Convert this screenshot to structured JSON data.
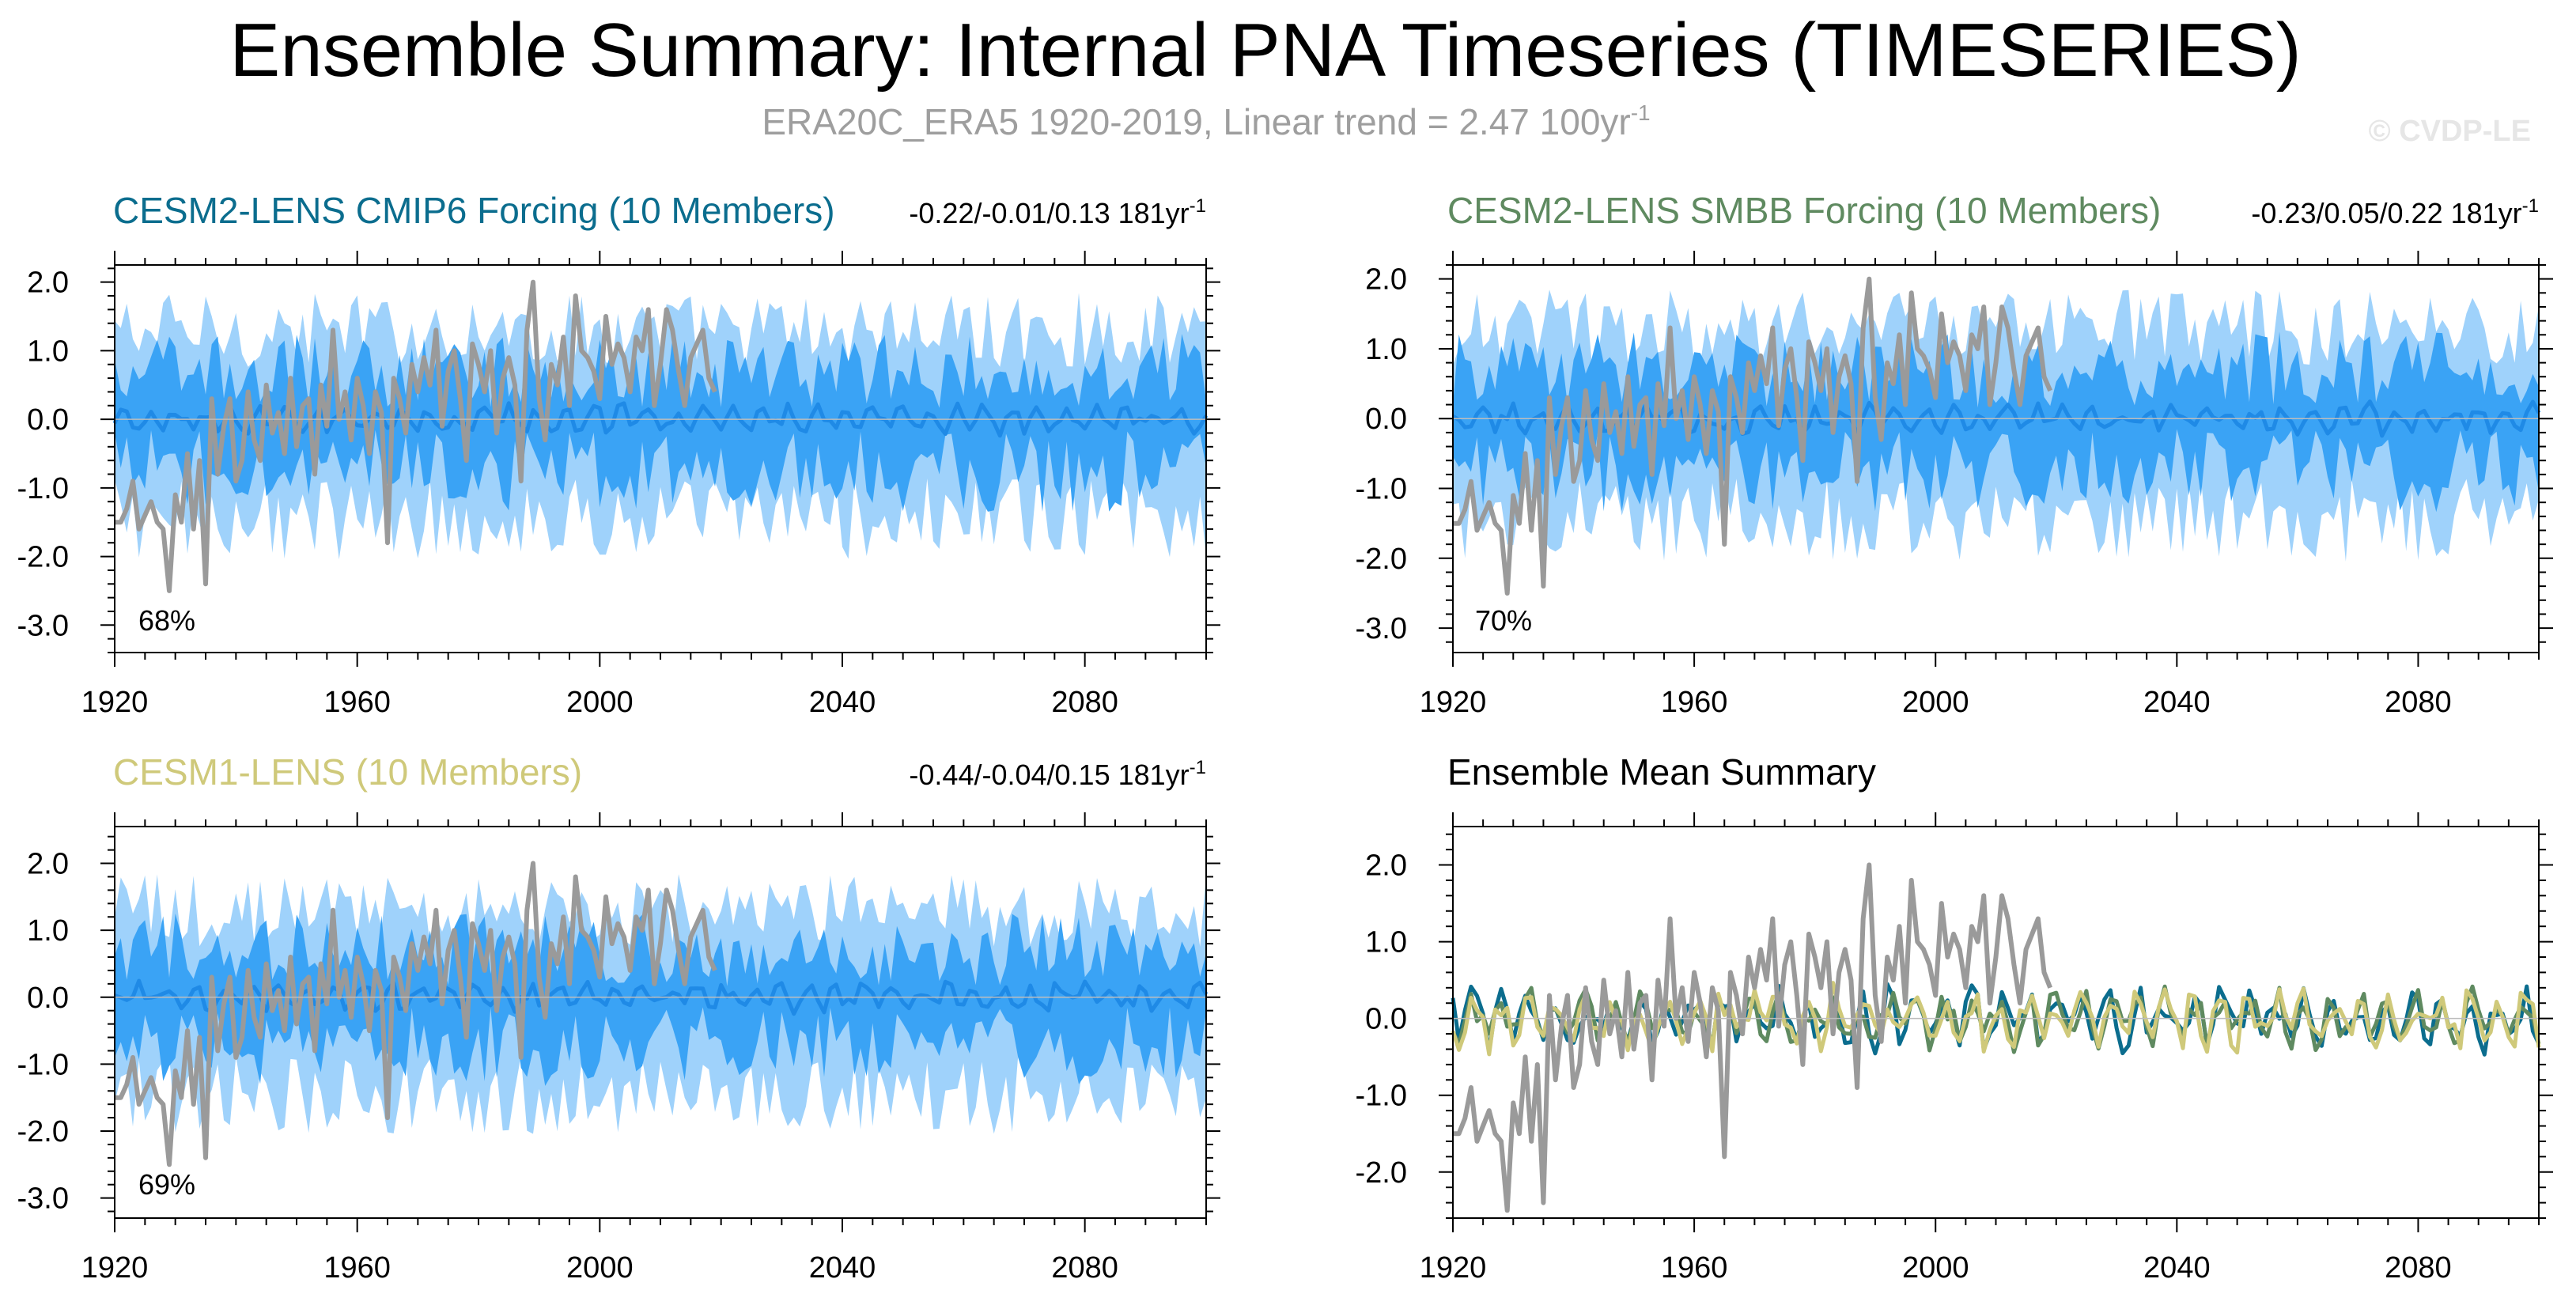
{
  "figure": {
    "title": "Ensemble Summary: Internal PNA Timeseries (TIMESERIES)",
    "subtitle": "ERA20C_ERA5 1920-2019, Linear trend = 2.47 100yr",
    "subtitle_sup": "-1",
    "watermark": "© CVDP-LE"
  },
  "colors": {
    "observed": "#9a9a9a",
    "band_outer": "#9fd2fb",
    "band_inner": "#3aa3f5",
    "ens_mean": "#1f8ae6",
    "cesm2_cmip6": "#0b6d8e",
    "cesm2_smbb": "#5f8a60",
    "cesm1": "#cfc97a",
    "axis": "#000000"
  },
  "chart_data": [
    {
      "type": "line",
      "panel": "cesm2-cmip6",
      "title": "CESM2-LENS CMIP6 Forcing (10 Members)",
      "title_color": "#0b6d8e",
      "stats": "-0.22/-0.01/0.13 181yr",
      "stats_sup": "-1",
      "percent_label": "68%",
      "xlim": [
        1920,
        2100
      ],
      "ylim": [
        -3.4,
        2.25
      ],
      "x_ticks": [
        1920,
        1960,
        2000,
        2040,
        2080
      ],
      "x_tick_labels": [
        "1920",
        "1960",
        "2000",
        "2040",
        "2080"
      ],
      "y_ticks": [
        2.0,
        1.0,
        0.0,
        -1.0,
        -2.0,
        -3.0
      ],
      "y_tick_labels": [
        "2.0",
        "1.0",
        "0.0",
        "-1.0",
        "-2.0",
        "-3.0"
      ],
      "series": [
        {
          "name": "ensemble 10-90% range",
          "kind": "band",
          "lower": -1.45,
          "upper": 1.3
        },
        {
          "name": "ensemble 25-75% range",
          "kind": "band",
          "lower": -0.75,
          "upper": 0.7
        },
        {
          "name": "ensemble mean",
          "kind": "line",
          "amplitude": 0.16
        },
        {
          "name": "ERA20C_ERA5",
          "kind": "observed",
          "x_range": [
            1920,
            2019
          ]
        }
      ]
    },
    {
      "type": "line",
      "panel": "cesm2-smbb",
      "title": "CESM2-LENS SMBB Forcing (10 Members)",
      "title_color": "#5f8a60",
      "stats": "-0.23/0.05/0.22 181yr",
      "stats_sup": "-1",
      "percent_label": "70%",
      "xlim": [
        1920,
        2100
      ],
      "ylim": [
        -3.35,
        2.2
      ],
      "x_ticks": [
        1920,
        1960,
        2000,
        2040,
        2080
      ],
      "x_tick_labels": [
        "1920",
        "1960",
        "2000",
        "2040",
        "2080"
      ],
      "y_ticks": [
        2.0,
        1.0,
        0.0,
        -1.0,
        -2.0,
        -3.0
      ],
      "y_tick_labels": [
        "2.0",
        "1.0",
        "0.0",
        "-1.0",
        "-2.0",
        "-3.0"
      ],
      "series": [
        {
          "name": "ensemble 10-90% range",
          "kind": "band",
          "lower": -1.45,
          "upper": 1.3
        },
        {
          "name": "ensemble 25-75% range",
          "kind": "band",
          "lower": -0.75,
          "upper": 0.7
        },
        {
          "name": "ensemble mean",
          "kind": "line",
          "amplitude": 0.16
        },
        {
          "name": "ERA20C_ERA5",
          "kind": "observed",
          "x_range": [
            1920,
            2019
          ]
        }
      ]
    },
    {
      "type": "line",
      "panel": "cesm1",
      "title": "CESM1-LENS (10 Members)",
      "title_color": "#cfc97a",
      "stats": "-0.44/-0.04/0.15 181yr",
      "stats_sup": "-1",
      "percent_label": "69%",
      "xlim": [
        1920,
        2100
      ],
      "ylim": [
        -3.3,
        2.55
      ],
      "x_ticks": [
        1920,
        1960,
        2000,
        2040,
        2080
      ],
      "x_tick_labels": [
        "1920",
        "1960",
        "2000",
        "2040",
        "2080"
      ],
      "y_ticks": [
        2.0,
        1.0,
        0.0,
        -1.0,
        -2.0,
        -3.0
      ],
      "y_tick_labels": [
        "2.0",
        "1.0",
        "0.0",
        "-1.0",
        "-2.0",
        "-3.0"
      ],
      "series": [
        {
          "name": "ensemble 10-90% range",
          "kind": "band",
          "lower": -1.45,
          "upper": 1.3
        },
        {
          "name": "ensemble 25-75% range",
          "kind": "band",
          "lower": -0.75,
          "upper": 0.7
        },
        {
          "name": "ensemble mean",
          "kind": "line",
          "amplitude": 0.16
        },
        {
          "name": "ERA20C_ERA5",
          "kind": "observed",
          "x_range": [
            1920,
            2019
          ]
        }
      ]
    },
    {
      "type": "line",
      "panel": "ensemble-mean-summary",
      "title": "Ensemble Mean Summary",
      "title_color": "#000000",
      "xlim": [
        1920,
        2100
      ],
      "ylim": [
        -2.6,
        2.5
      ],
      "x_ticks": [
        1920,
        1960,
        2000,
        2040,
        2080
      ],
      "x_tick_labels": [
        "1920",
        "1960",
        "2000",
        "2040",
        "2080"
      ],
      "y_ticks": [
        2.0,
        1.0,
        0.0,
        -1.0,
        -2.0
      ],
      "y_tick_labels": [
        "2.0",
        "1.0",
        "0.0",
        "-1.0",
        "-2.0"
      ],
      "series": [
        {
          "name": "CESM2-LENS CMIP6 Forcing",
          "kind": "line",
          "amplitude": 0.3,
          "color": "#0b6d8e"
        },
        {
          "name": "CESM2-LENS SMBB Forcing",
          "kind": "line",
          "amplitude": 0.28,
          "color": "#5f8a60"
        },
        {
          "name": "CESM1-LENS",
          "kind": "line",
          "amplitude": 0.3,
          "color": "#cfc97a"
        },
        {
          "name": "ERA20C_ERA5",
          "kind": "observed",
          "x_range": [
            1920,
            2019
          ]
        }
      ]
    }
  ],
  "observed_series": {
    "name": "ERA20C_ERA5",
    "x_start": 1920,
    "values": [
      -1.5,
      -1.5,
      -1.3,
      -0.9,
      -1.6,
      -1.4,
      -1.2,
      -1.5,
      -1.6,
      -2.5,
      -1.1,
      -1.5,
      -0.5,
      -1.6,
      -0.6,
      -2.4,
      0.3,
      -0.8,
      -0.1,
      0.3,
      -0.9,
      -0.6,
      0.4,
      -0.3,
      -0.6,
      0.5,
      -0.2,
      0.1,
      -0.5,
      0.6,
      -0.4,
      0.2,
      0.3,
      -0.8,
      0.5,
      -0.1,
      1.3,
      0.0,
      0.4,
      -0.3,
      0.6,
      0.2,
      -0.5,
      0.4,
      0.1,
      -1.8,
      0.6,
      0.3,
      -0.2,
      0.8,
      0.4,
      0.9,
      0.5,
      1.3,
      -0.1,
      0.7,
      1.0,
      0.3,
      -0.6,
      1.1,
      0.8,
      0.4,
      1.0,
      -0.2,
      0.6,
      0.9,
      0.5,
      -0.9,
      1.3,
      2.0,
      0.3,
      -0.3,
      0.8,
      0.5,
      1.2,
      0.2,
      1.8,
      1.0,
      0.9,
      0.7,
      0.3,
      1.5,
      0.8,
      1.1,
      0.9,
      0.4,
      1.2,
      1.0,
      1.6,
      0.2,
      0.8,
      1.6,
      1.3,
      0.7,
      0.2,
      0.9,
      1.1,
      1.3,
      0.6,
      0.4
    ]
  }
}
